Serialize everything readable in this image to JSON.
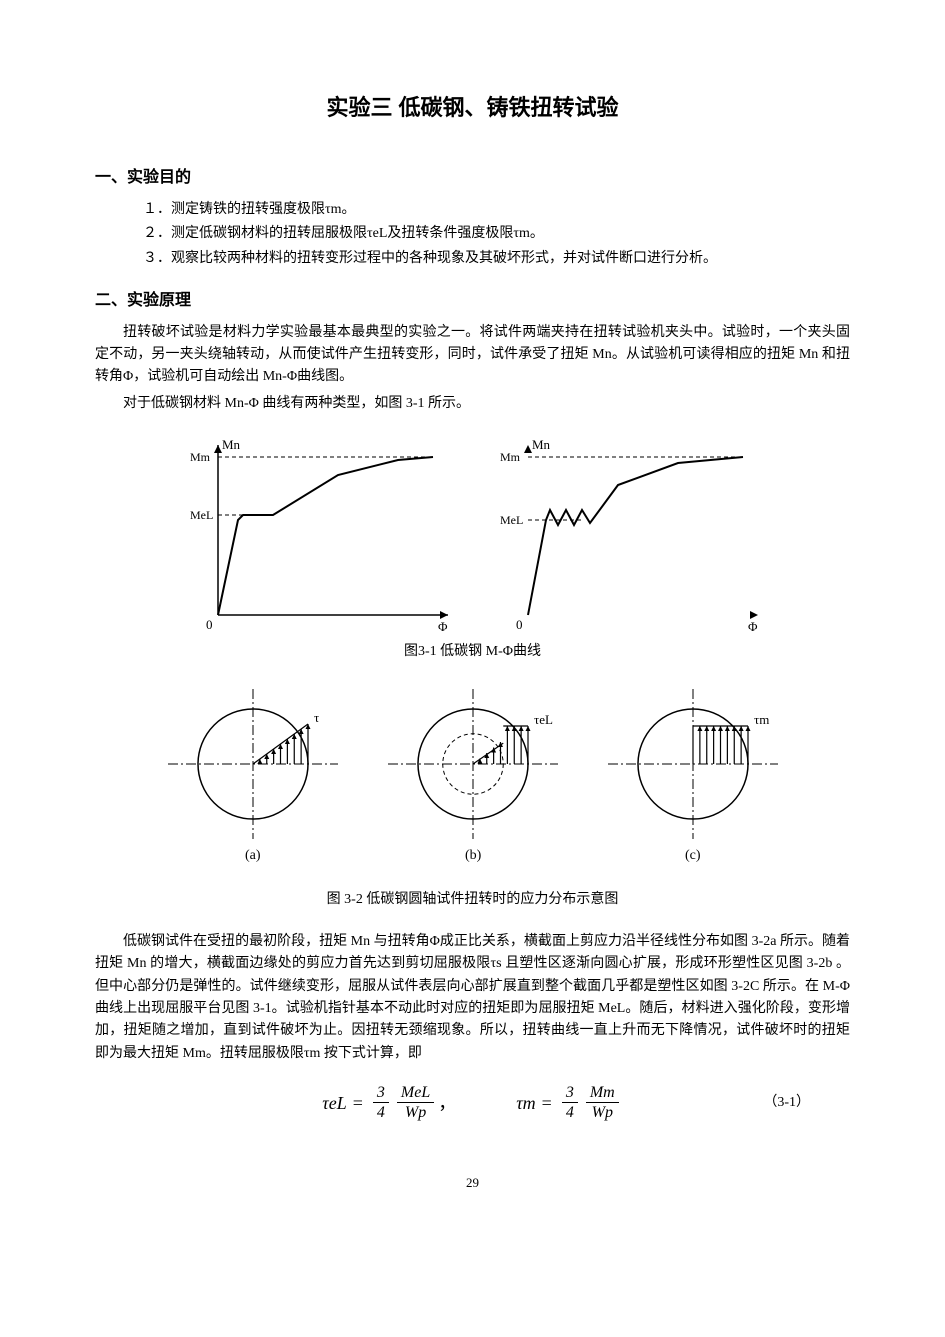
{
  "title": "实验三  低碳钢、铸铁扭转试验",
  "section1_head": "一、实验目的",
  "objectives": [
    "１．测定铸铁的扭转强度极限τm。",
    "２．测定低碳钢材料的扭转屈服极限τeL及扭转条件强度极限τm。",
    "３．观察比较两种材料的扭转变形过程中的各种现象及其破坏形式，并对试件断口进行分析。"
  ],
  "section2_head": "二、实验原理",
  "para1": "扭转破坏试验是材料力学实验最基本最典型的实验之一。将试件两端夹持在扭转试验机夹头中。试验时，一个夹头固定不动，另一夹头绕轴转动，从而使试件产生扭转变形，同时，试件承受了扭矩 Mn。从试验机可读得相应的扭矩 Mn 和扭转角Φ，试验机可自动绘出 Mn-Φ曲线图。",
  "para2": "对于低碳钢材料 Mn-Φ 曲线有两种类型，如图 3-1 所示。",
  "fig1_caption": "图3-1 低碳钢 M-Φ曲线",
  "fig2_caption": "图 3-2    低碳钢圆轴试件扭转时的应力分布示意图",
  "para3": "低碳钢试件在受扭的最初阶段，扭矩 Mn 与扭转角Φ成正比关系，横截面上剪应力沿半径线性分布如图 3-2a 所示。随着扭矩 Mn 的增大，横截面边缘处的剪应力首先达到剪切屈服极限τs 且塑性区逐渐向圆心扩展，形成环形塑性区见图 3-2b 。但中心部分仍是弹性的。试件继续变形，屈服从试件表层向心部扩展直到整个截面几乎都是塑性区如图 3-2C 所示。在 M-Φ曲线上出现屈服平台见图 3-1。试验机指针基本不动此时对应的扭矩即为屈服扭矩 MeL。随后，材料进入强化阶段，变形增加，扭矩随之增加，直到试件破坏为止。因扭转无颈缩现象。所以，扭转曲线一直上升而无下降情况，试件破坏时的扭矩即为最大扭矩 Mm。扭转屈服极限τm 按下式计算，即",
  "eq_num": "（3-1）",
  "page_number": "29",
  "chart1": {
    "type": "line",
    "y_axis_label": "Mn",
    "x_axis_label": "Φ",
    "y_ticks": [
      "Mm",
      "MeL"
    ],
    "origin_label": "0",
    "line_color": "#000000",
    "bg": "#ffffff",
    "line_width": 2,
    "axis_color": "#000000",
    "points": [
      [
        0,
        0
      ],
      [
        20,
        95
      ],
      [
        25,
        100
      ],
      [
        55,
        100
      ],
      [
        120,
        140
      ],
      [
        180,
        155
      ],
      [
        215,
        158
      ]
    ],
    "dash_y_mm": 158,
    "dash_y_mel": 100
  },
  "chart2": {
    "type": "line",
    "y_axis_label": "Mn",
    "x_axis_label": "Φ",
    "y_ticks": [
      "Mm",
      "MeL"
    ],
    "origin_label": "0",
    "line_color": "#000000",
    "bg": "#ffffff",
    "line_width": 2,
    "points": [
      [
        0,
        0
      ],
      [
        18,
        95
      ],
      [
        22,
        105
      ],
      [
        30,
        90
      ],
      [
        38,
        105
      ],
      [
        46,
        90
      ],
      [
        54,
        105
      ],
      [
        62,
        92
      ],
      [
        90,
        130
      ],
      [
        150,
        152
      ],
      [
        215,
        158
      ]
    ],
    "dash_y_mm": 158,
    "dash_y_mel": 95
  },
  "stress_diagrams": {
    "labels": [
      "(a)",
      "(b)",
      "(c)"
    ],
    "tau_labels": [
      "τ",
      "τeL",
      "τm"
    ],
    "circle_stroke": "#000000",
    "stroke_width": 1.5,
    "dash": "4 3"
  },
  "equation": {
    "lhs1": "τeL",
    "rhs1_coef_num": "3",
    "rhs1_coef_den": "4",
    "rhs1_frac_num": "MeL",
    "rhs1_frac_den": "Wp",
    "lhs2": "τm",
    "rhs2_coef_num": "3",
    "rhs2_coef_den": "4",
    "rhs2_frac_num": "Mm",
    "rhs2_frac_den": "Wp"
  }
}
